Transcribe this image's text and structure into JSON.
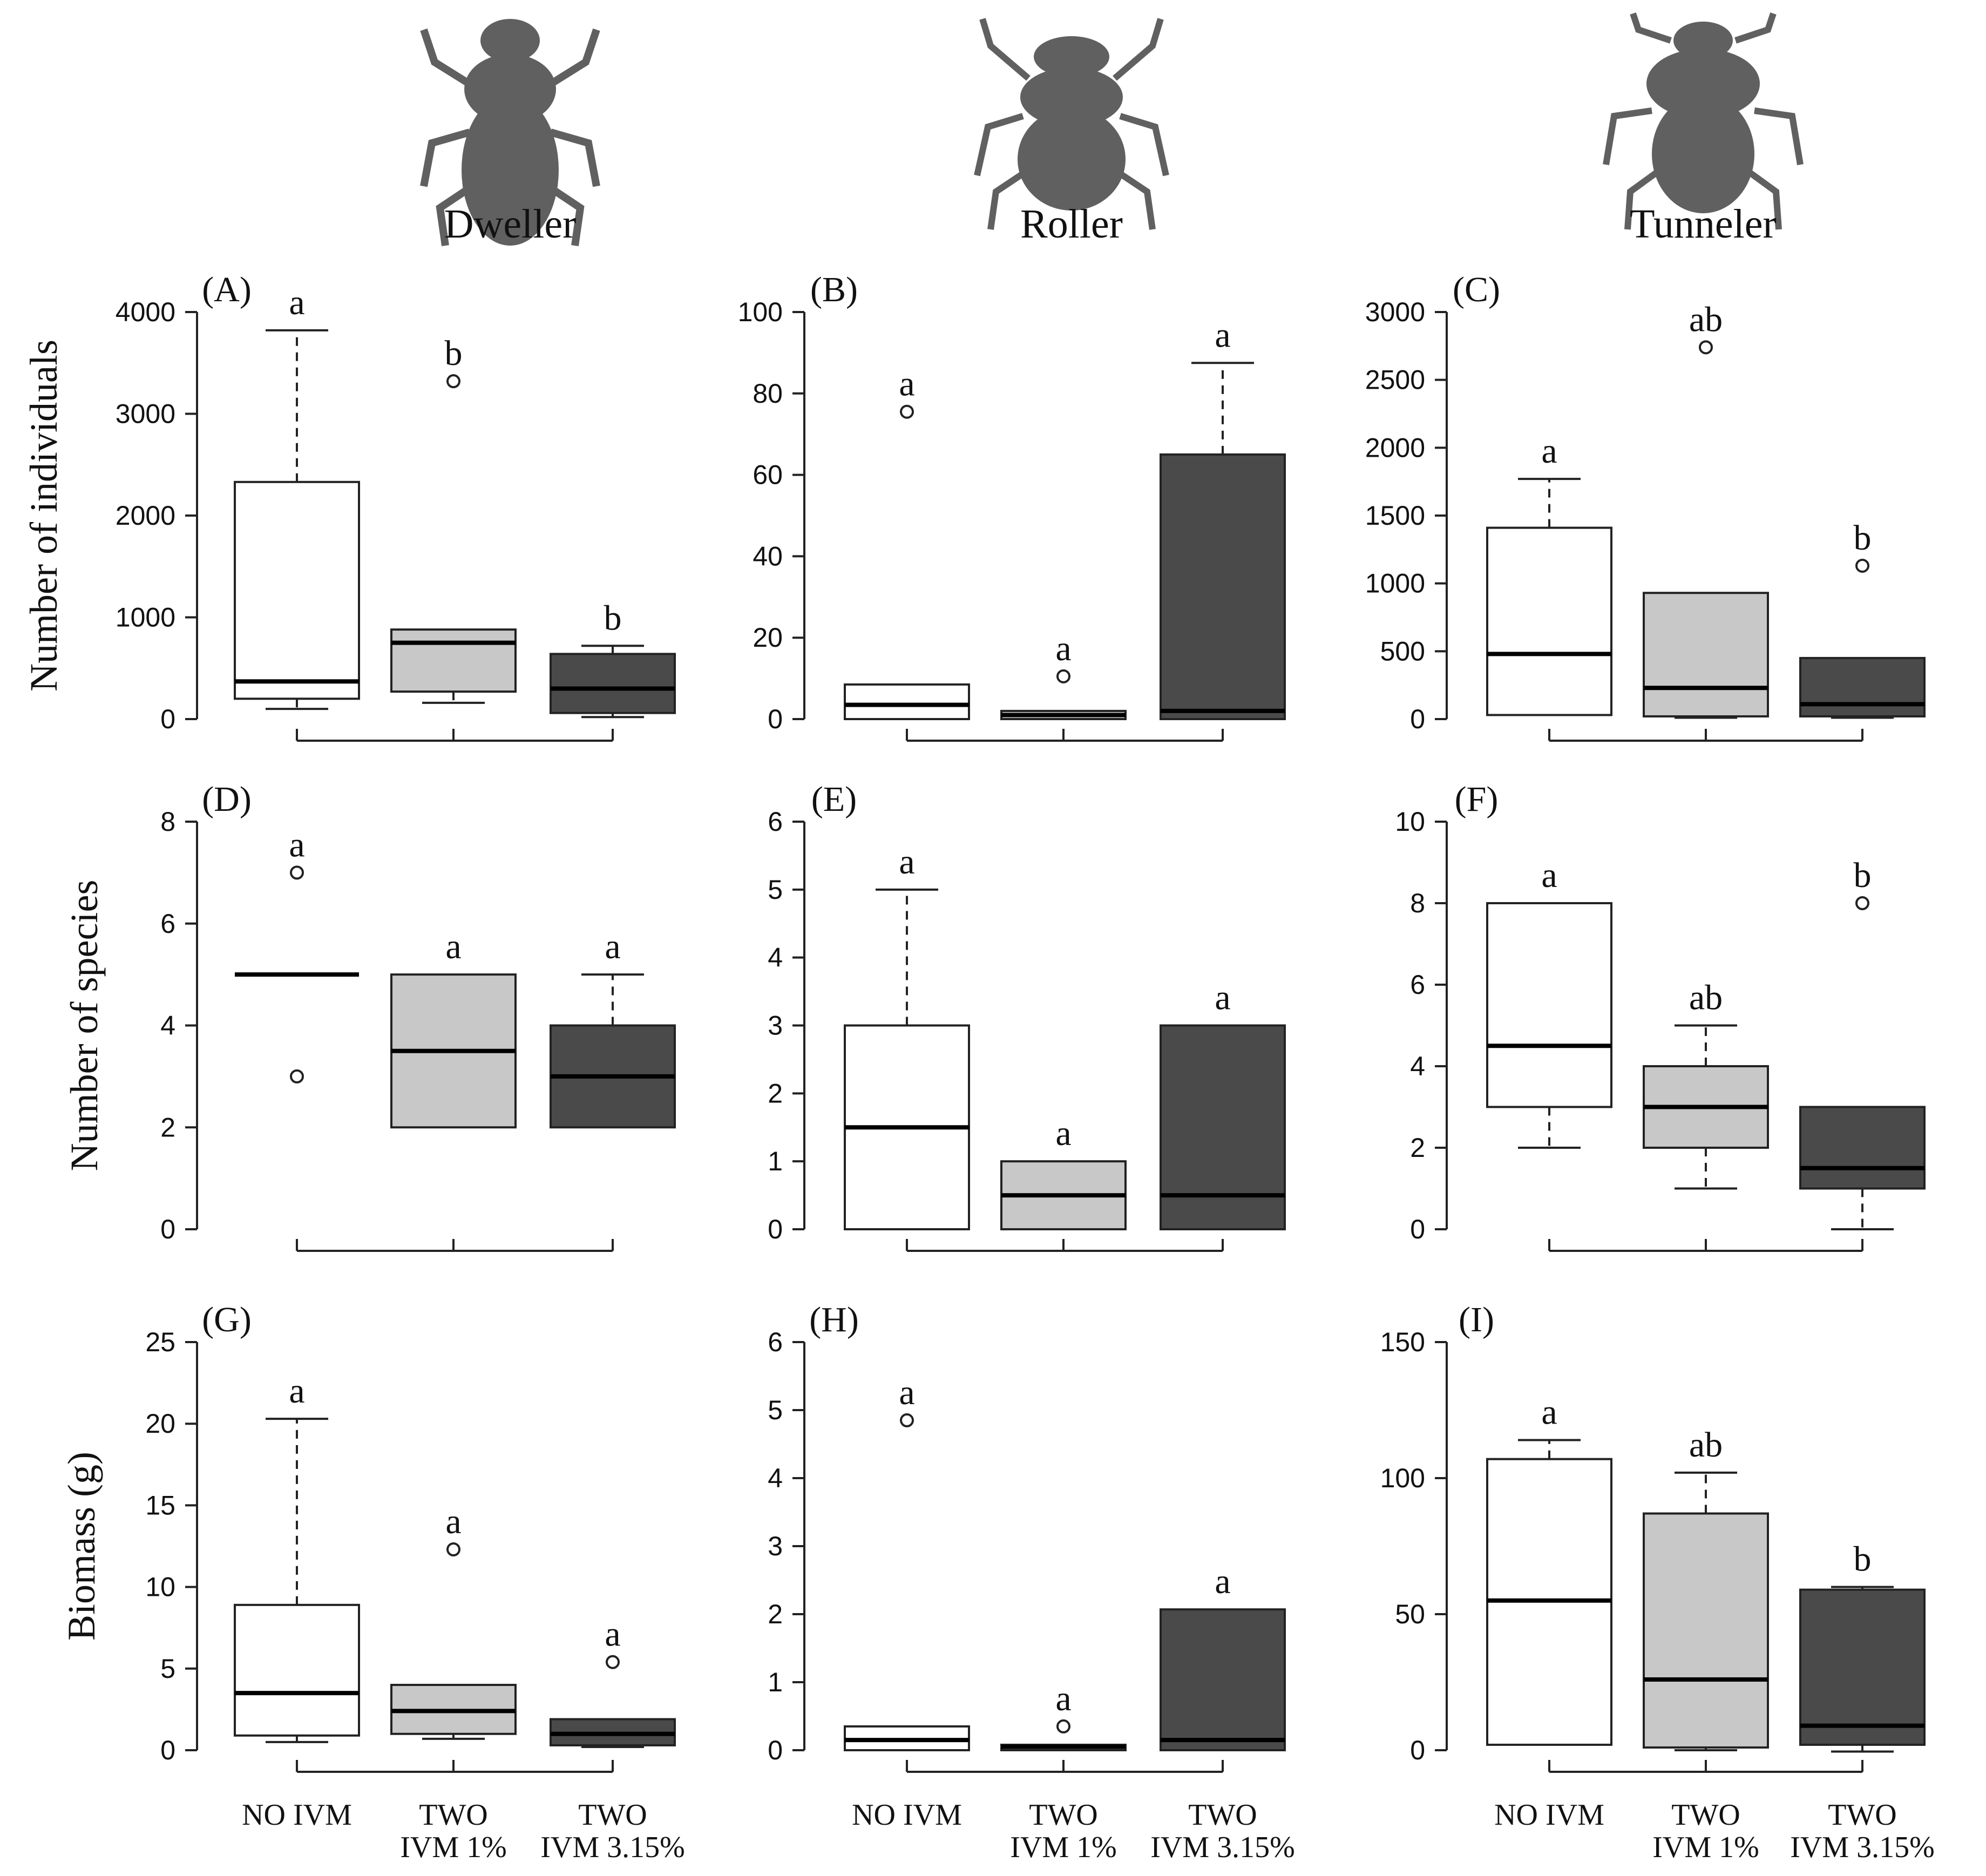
{
  "chart_data": {
    "type": "boxplot",
    "columns": [
      "Dweller",
      "Roller",
      "Tunneler"
    ],
    "row_labels": [
      "Number of individuals",
      "Number of species",
      "Biomass (g)"
    ],
    "groups": [
      {
        "line1": "NO IVM",
        "line2": ""
      },
      {
        "line1": "TWO",
        "line2": "IVM 1%"
      },
      {
        "line1": "TWO",
        "line2": "IVM 3.15%"
      }
    ],
    "colors": {
      "NO IVM": "#ffffff",
      "TWO IVM 1%": "#c8c8c8",
      "TWO IVM 3.15%": "#4a4a4a",
      "beetle": "#606060"
    },
    "icons": [
      "dweller-beetle-icon",
      "roller-beetle-icon",
      "tunneler-beetle-icon"
    ],
    "panels": [
      {
        "label": "(A)",
        "ylim": [
          0,
          4000
        ],
        "yticks": [
          0,
          1000,
          2000,
          3000,
          4000
        ],
        "boxes": [
          {
            "group": "NO IVM",
            "whisker_low": 100,
            "q1": 200,
            "median": 370,
            "q3": 2330,
            "whisker_high": 3820,
            "outliers": [],
            "letter": "a"
          },
          {
            "group": "TWO IVM 1%",
            "whisker_low": 160,
            "q1": 270,
            "median": 750,
            "q3": 880,
            "whisker_high": 880,
            "outliers": [
              3320
            ],
            "letter": "b"
          },
          {
            "group": "TWO IVM 3.15%",
            "whisker_low": 20,
            "q1": 60,
            "median": 300,
            "q3": 640,
            "whisker_high": 720,
            "outliers": [],
            "letter": "b"
          }
        ]
      },
      {
        "label": "(B)",
        "ylim": [
          0,
          100
        ],
        "yticks": [
          0,
          20,
          40,
          60,
          80,
          100
        ],
        "boxes": [
          {
            "group": "NO IVM",
            "whisker_low": 0,
            "q1": 0,
            "median": 3.5,
            "q3": 8.5,
            "whisker_high": 8.5,
            "outliers": [
              75.5
            ],
            "letter": "a"
          },
          {
            "group": "TWO IVM 1%",
            "whisker_low": 0,
            "q1": 0,
            "median": 1,
            "q3": 2,
            "whisker_high": 2,
            "outliers": [
              10.5
            ],
            "letter": "a"
          },
          {
            "group": "TWO IVM 3.15%",
            "whisker_low": 0,
            "q1": 0,
            "median": 2,
            "q3": 65,
            "whisker_high": 87.5,
            "outliers": [],
            "letter": "a"
          }
        ]
      },
      {
        "label": "(C)",
        "ylim": [
          0,
          3000
        ],
        "yticks": [
          0,
          500,
          1000,
          1500,
          2000,
          2500,
          3000
        ],
        "boxes": [
          {
            "group": "NO IVM",
            "whisker_low": 30,
            "q1": 30,
            "median": 480,
            "q3": 1410,
            "whisker_high": 1770,
            "outliers": [],
            "letter": "a"
          },
          {
            "group": "TWO IVM 1%",
            "whisker_low": 10,
            "q1": 20,
            "median": 230,
            "q3": 930,
            "whisker_high": 930,
            "outliers": [
              2740
            ],
            "letter": "ab"
          },
          {
            "group": "TWO IVM 3.15%",
            "whisker_low": 10,
            "q1": 20,
            "median": 110,
            "q3": 450,
            "whisker_high": 450,
            "outliers": [
              1130
            ],
            "letter": "b"
          }
        ]
      },
      {
        "label": "(D)",
        "ylim": [
          0,
          8
        ],
        "yticks": [
          0,
          2,
          4,
          6,
          8
        ],
        "boxes": [
          {
            "group": "NO IVM",
            "whisker_low": 5,
            "q1": 5,
            "median": 5,
            "q3": 5,
            "whisker_high": 5,
            "outliers": [
              3,
              7
            ],
            "letter": "a"
          },
          {
            "group": "TWO IVM 1%",
            "whisker_low": 2,
            "q1": 2,
            "median": 3.5,
            "q3": 5,
            "whisker_high": 5,
            "outliers": [],
            "letter": "a"
          },
          {
            "group": "TWO IVM 3.15%",
            "whisker_low": 2,
            "q1": 2,
            "median": 3,
            "q3": 4,
            "whisker_high": 5,
            "outliers": [],
            "letter": "a"
          }
        ]
      },
      {
        "label": "(E)",
        "ylim": [
          0,
          6
        ],
        "yticks": [
          0,
          1,
          2,
          3,
          4,
          5,
          6
        ],
        "boxes": [
          {
            "group": "NO IVM",
            "whisker_low": 0,
            "q1": 0,
            "median": 1.5,
            "q3": 3,
            "whisker_high": 5,
            "outliers": [],
            "letter": "a"
          },
          {
            "group": "TWO IVM 1%",
            "whisker_low": 0,
            "q1": 0,
            "median": 0.5,
            "q3": 1,
            "whisker_high": 1,
            "outliers": [],
            "letter": "a"
          },
          {
            "group": "TWO IVM 3.15%",
            "whisker_low": 0,
            "q1": 0,
            "median": 0.5,
            "q3": 3,
            "whisker_high": 3,
            "outliers": [],
            "letter": "a"
          }
        ]
      },
      {
        "label": "(F)",
        "ylim": [
          0,
          10
        ],
        "yticks": [
          0,
          2,
          4,
          6,
          8,
          10
        ],
        "boxes": [
          {
            "group": "NO IVM",
            "whisker_low": 2,
            "q1": 3,
            "median": 4.5,
            "q3": 8,
            "whisker_high": 8,
            "outliers": [],
            "letter": "a"
          },
          {
            "group": "TWO IVM 1%",
            "whisker_low": 1,
            "q1": 2,
            "median": 3,
            "q3": 4,
            "whisker_high": 5,
            "outliers": [],
            "letter": "ab"
          },
          {
            "group": "TWO IVM 3.15%",
            "whisker_low": 0,
            "q1": 1,
            "median": 1.5,
            "q3": 3,
            "whisker_high": 3,
            "outliers": [
              8
            ],
            "letter": "b"
          }
        ]
      },
      {
        "label": "(G)",
        "ylim": [
          0,
          25
        ],
        "yticks": [
          0,
          5,
          10,
          15,
          20,
          25
        ],
        "boxes": [
          {
            "group": "NO IVM",
            "whisker_low": 0.5,
            "q1": 0.9,
            "median": 3.5,
            "q3": 8.9,
            "whisker_high": 20.3,
            "outliers": [],
            "letter": "a"
          },
          {
            "group": "TWO IVM 1%",
            "whisker_low": 0.7,
            "q1": 1,
            "median": 2.4,
            "q3": 4,
            "whisker_high": 4,
            "outliers": [
              12.3
            ],
            "letter": "a"
          },
          {
            "group": "TWO IVM 3.15%",
            "whisker_low": 0.2,
            "q1": 0.3,
            "median": 1,
            "q3": 1.9,
            "whisker_high": 1.9,
            "outliers": [
              5.4
            ],
            "letter": "a"
          }
        ]
      },
      {
        "label": "(H)",
        "ylim": [
          0,
          6
        ],
        "yticks": [
          0,
          1,
          2,
          3,
          4,
          5,
          6
        ],
        "boxes": [
          {
            "group": "NO IVM",
            "whisker_low": 0,
            "q1": 0,
            "median": 0.15,
            "q3": 0.35,
            "whisker_high": 0.35,
            "outliers": [
              4.85
            ],
            "letter": "a"
          },
          {
            "group": "TWO IVM 1%",
            "whisker_low": 0,
            "q1": 0,
            "median": 0.05,
            "q3": 0.08,
            "whisker_high": 0.08,
            "outliers": [
              0.35
            ],
            "letter": "a"
          },
          {
            "group": "TWO IVM 3.15%",
            "whisker_low": 0,
            "q1": 0,
            "median": 0.15,
            "q3": 2.07,
            "whisker_high": 2.07,
            "outliers": [],
            "letter": "a"
          }
        ]
      },
      {
        "label": "(I)",
        "ylim": [
          0,
          150
        ],
        "yticks": [
          0,
          50,
          100,
          150
        ],
        "boxes": [
          {
            "group": "NO IVM",
            "whisker_low": 2,
            "q1": 2,
            "median": 55,
            "q3": 107,
            "whisker_high": 114,
            "outliers": [],
            "letter": "a"
          },
          {
            "group": "TWO IVM 1%",
            "whisker_low": 0,
            "q1": 1,
            "median": 26,
            "q3": 87,
            "whisker_high": 102,
            "outliers": [],
            "letter": "ab"
          },
          {
            "group": "TWO IVM 3.15%",
            "whisker_low": -0.5,
            "q1": 2,
            "median": 9,
            "q3": 59,
            "whisker_high": 60,
            "outliers": [],
            "letter": "b"
          }
        ]
      }
    ]
  }
}
